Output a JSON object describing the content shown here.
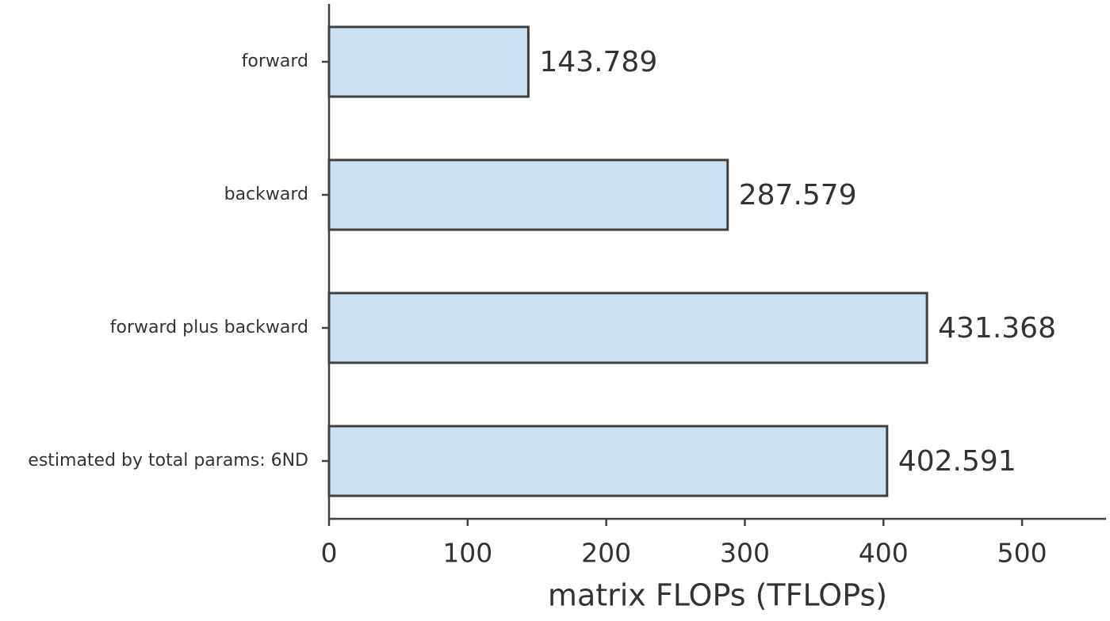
{
  "chart_data": {
    "type": "barh",
    "categories": [
      "forward",
      "backward",
      "forward plus backward",
      "estimated by total params: 6ND"
    ],
    "values": [
      143.789,
      287.579,
      431.368,
      402.591
    ],
    "color": "#cce2f3",
    "xlabel": "matrix FLOPs (TFLOPs)",
    "xlim": [
      0,
      560
    ],
    "xticks": [
      0,
      100,
      200,
      300,
      400,
      500
    ]
  }
}
